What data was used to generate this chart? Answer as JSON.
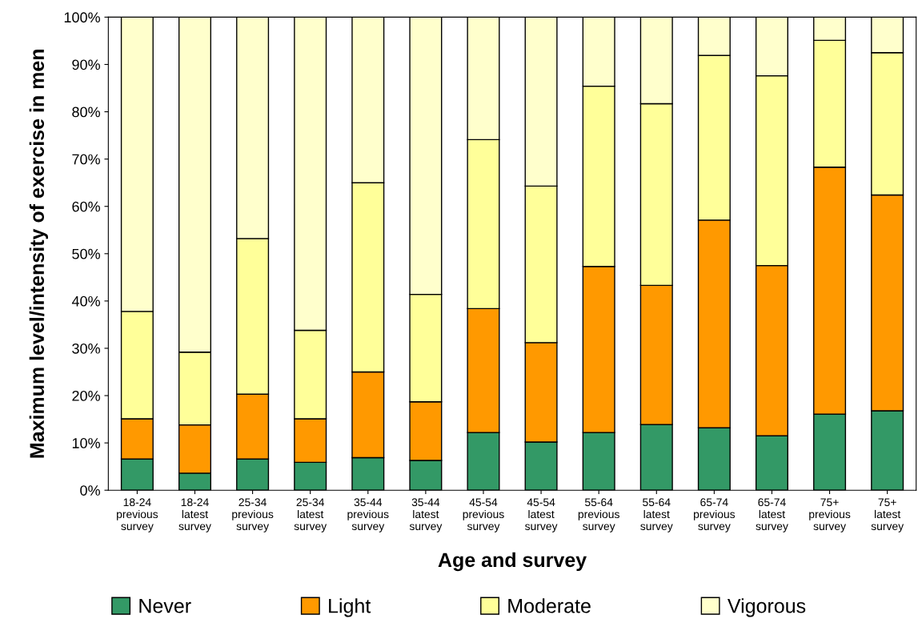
{
  "chart_data": {
    "type": "bar",
    "stacked": true,
    "xlabel": "Age and survey",
    "ylabel": "Maximum level/intensity of exercise in men",
    "categories": [
      "18-24\nprevious\nsurvey",
      "18-24\nlatest\nsurvey",
      "25-34\nprevious\nsurvey",
      "25-34\nlatest\nsurvey",
      "35-44\nprevious\nsurvey",
      "35-44\nlatest\nsurvey",
      "45-54\nprevious\nsurvey",
      "45-54\nlatest\nsurvey",
      "55-64\nprevious\nsurvey",
      "55-64\nlatest\nsurvey",
      "65-74\nprevious\nsurvey",
      "65-74\nlatest\nsurvey",
      "75+\nprevious\nsurvey",
      "75+\nlatest\nsurvey"
    ],
    "series": [
      {
        "name": "Never",
        "color": "#339966",
        "values": [
          6.6,
          3.6,
          6.6,
          5.9,
          6.9,
          6.3,
          12.2,
          10.2,
          12.2,
          13.9,
          13.2,
          11.5,
          16.1,
          16.8
        ]
      },
      {
        "name": "Light",
        "color": "#ff9900",
        "values": [
          8.5,
          10.2,
          13.7,
          9.2,
          18.1,
          12.4,
          26.2,
          21.0,
          35.1,
          29.4,
          43.9,
          36.0,
          52.2,
          45.6
        ]
      },
      {
        "name": "Moderate",
        "color": "#ffff99",
        "values": [
          22.7,
          15.4,
          32.9,
          18.7,
          40.0,
          22.7,
          35.7,
          33.1,
          38.1,
          38.4,
          34.8,
          40.1,
          26.8,
          30.1
        ]
      },
      {
        "name": "Vigorous",
        "color": "#ffffcc",
        "values": [
          62.2,
          70.8,
          46.8,
          66.2,
          35.0,
          58.6,
          25.9,
          35.7,
          14.6,
          18.3,
          8.1,
          12.4,
          4.9,
          7.5
        ]
      }
    ],
    "ylim": [
      0,
      100
    ],
    "yticks": [
      {
        "value": 0,
        "label": "0%"
      },
      {
        "value": 10,
        "label": "10%"
      },
      {
        "value": 20,
        "label": "20%"
      },
      {
        "value": 30,
        "label": "30%"
      },
      {
        "value": 40,
        "label": "40%"
      },
      {
        "value": 50,
        "label": "50%"
      },
      {
        "value": 60,
        "label": "60%"
      },
      {
        "value": 70,
        "label": "70%"
      },
      {
        "value": 80,
        "label": "80%"
      },
      {
        "value": 90,
        "label": "90%"
      },
      {
        "value": 100,
        "label": "100%"
      }
    ],
    "grid": false,
    "legend": "bottom"
  }
}
